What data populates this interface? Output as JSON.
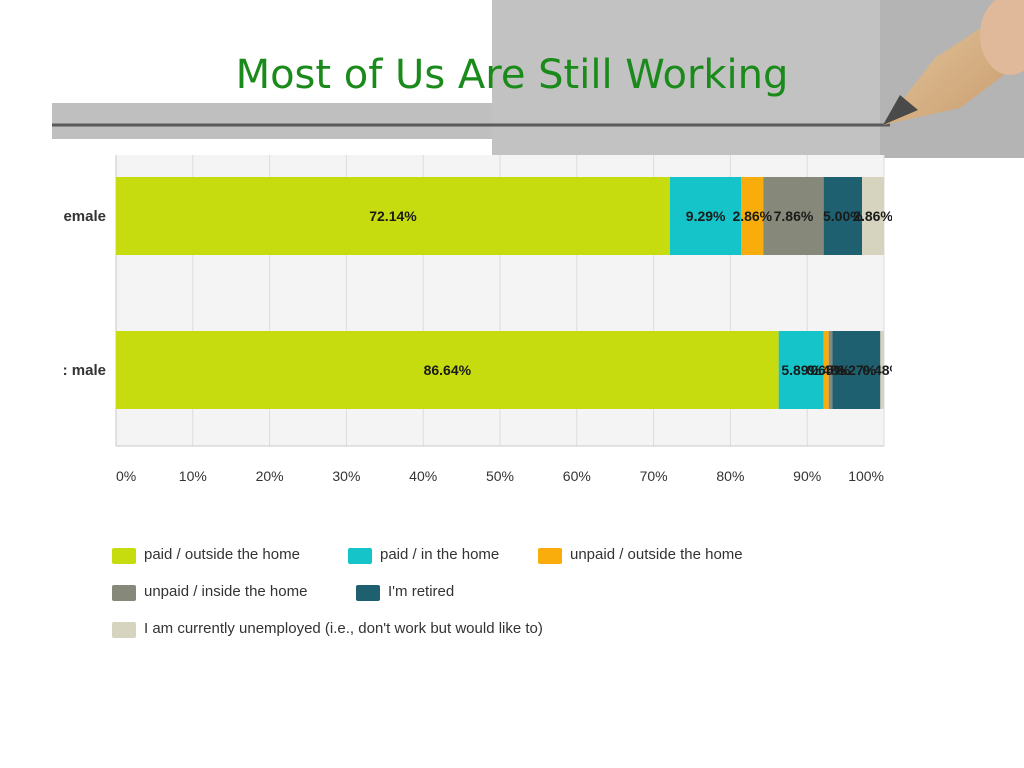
{
  "slide": {
    "title": "Most of Us Are Still Working"
  },
  "chart_data": {
    "type": "bar",
    "orientation": "horizontal",
    "stacked": true,
    "percent": true,
    "categories": [
      "Female",
      "Male"
    ],
    "category_labels_visible": [
      "emale",
      ": male"
    ],
    "xlim": [
      0,
      100
    ],
    "xticks": [
      "0%",
      "10%",
      "20%",
      "30%",
      "40%",
      "50%",
      "60%",
      "70%",
      "80%",
      "90%",
      "100%"
    ],
    "grid": true,
    "legend_position": "bottom",
    "series": [
      {
        "name": "paid / outside the home",
        "color": "#c6dc0e",
        "values": [
          72.14,
          86.64
        ],
        "labels": [
          "72.14%",
          "86.64%"
        ]
      },
      {
        "name": "paid / in the home",
        "color": "#14c4c8",
        "values": [
          9.29,
          5.89
        ],
        "labels": [
          "9.29%",
          "5.89%"
        ]
      },
      {
        "name": "unpaid / outside the home",
        "color": "#f8ad0c",
        "values": [
          2.86,
          0.65
        ],
        "labels": [
          "2.86%",
          "0.65%"
        ]
      },
      {
        "name": "unpaid / inside the home",
        "color": "#86897a",
        "values": [
          7.86,
          0.48
        ],
        "labels": [
          "7.86%",
          "0.48%"
        ]
      },
      {
        "name": "I'm retired",
        "color": "#1f6070",
        "values": [
          5.0,
          6.27
        ],
        "labels": [
          "5.00%",
          "6.27%"
        ]
      },
      {
        "name": "I am currently unemployed (i.e., don't work but would like to)",
        "color": "#d6d3bf",
        "values": [
          2.86,
          0.48
        ],
        "labels": [
          "2.86%",
          "0.48%"
        ]
      }
    ]
  }
}
